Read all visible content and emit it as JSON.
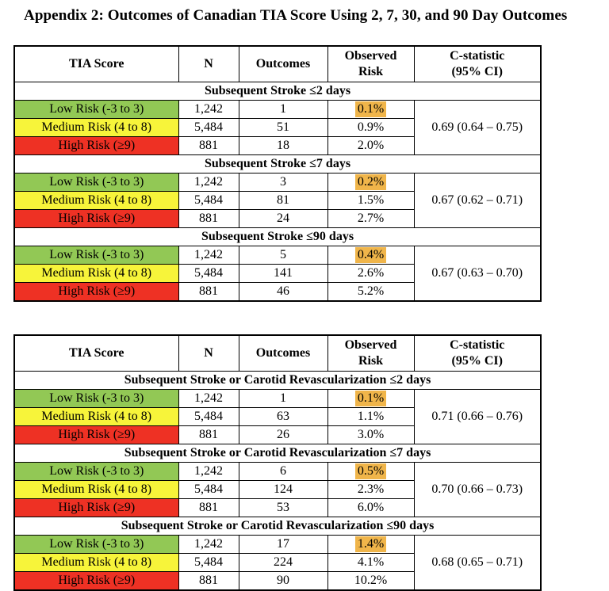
{
  "page": {
    "title": "Appendix 2: Outcomes of Canadian TIA Score Using 2, 7, 30, and 90 Day Outcomes"
  },
  "colors": {
    "low_risk_bg": "#92C855",
    "medium_risk_bg": "#F7F43A",
    "high_risk_bg": "#EE3124",
    "observed_risk_highlight": "#F0B54A"
  },
  "columns": [
    {
      "line1": "TIA Score",
      "line2": ""
    },
    {
      "line1": "N",
      "line2": ""
    },
    {
      "line1": "Outcomes",
      "line2": ""
    },
    {
      "line1": "Observed",
      "line2": "Risk"
    },
    {
      "line1": "C-statistic",
      "line2": "(95% CI)"
    }
  ],
  "tables": [
    {
      "sections": [
        {
          "title": "Subsequent Stroke ≤2 days",
          "c_statistic": "0.69 (0.64 – 0.75)",
          "rows": [
            {
              "label": "Low Risk (-3 to 3)",
              "risk": "low",
              "n": "1,242",
              "outcomes": "1",
              "observed_risk": "0.1%",
              "highlight": true
            },
            {
              "label": "Medium Risk (4 to 8)",
              "risk": "medium",
              "n": "5,484",
              "outcomes": "51",
              "observed_risk": "0.9%",
              "highlight": false
            },
            {
              "label": "High Risk (≥9)",
              "risk": "high",
              "n": "881",
              "outcomes": "18",
              "observed_risk": "2.0%",
              "highlight": false
            }
          ]
        },
        {
          "title": "Subsequent Stroke ≤7 days",
          "c_statistic": "0.67 (0.62 – 0.71)",
          "rows": [
            {
              "label": "Low Risk (-3 to 3)",
              "risk": "low",
              "n": "1,242",
              "outcomes": "3",
              "observed_risk": "0.2%",
              "highlight": true
            },
            {
              "label": "Medium Risk (4 to 8)",
              "risk": "medium",
              "n": "5,484",
              "outcomes": "81",
              "observed_risk": "1.5%",
              "highlight": false
            },
            {
              "label": "High Risk (≥9)",
              "risk": "high",
              "n": "881",
              "outcomes": "24",
              "observed_risk": "2.7%",
              "highlight": false
            }
          ]
        },
        {
          "title": "Subsequent Stroke ≤90 days",
          "c_statistic": "0.67 (0.63 – 0.70)",
          "rows": [
            {
              "label": "Low Risk (-3 to 3)",
              "risk": "low",
              "n": "1,242",
              "outcomes": "5",
              "observed_risk": "0.4%",
              "highlight": true
            },
            {
              "label": "Medium Risk (4 to 8)",
              "risk": "medium",
              "n": "5,484",
              "outcomes": "141",
              "observed_risk": "2.6%",
              "highlight": false
            },
            {
              "label": "High Risk (≥9)",
              "risk": "high",
              "n": "881",
              "outcomes": "46",
              "observed_risk": "5.2%",
              "highlight": false
            }
          ]
        }
      ]
    },
    {
      "sections": [
        {
          "title": "Subsequent Stroke or Carotid Revascularization ≤2 days",
          "c_statistic": "0.71 (0.66 – 0.76)",
          "rows": [
            {
              "label": "Low Risk (-3 to 3)",
              "risk": "low",
              "n": "1,242",
              "outcomes": "1",
              "observed_risk": "0.1%",
              "highlight": true
            },
            {
              "label": "Medium Risk (4 to 8)",
              "risk": "medium",
              "n": "5,484",
              "outcomes": "63",
              "observed_risk": "1.1%",
              "highlight": false
            },
            {
              "label": "High Risk (≥9)",
              "risk": "high",
              "n": "881",
              "outcomes": "26",
              "observed_risk": "3.0%",
              "highlight": false
            }
          ]
        },
        {
          "title": "Subsequent Stroke or Carotid Revascularization ≤7 days",
          "c_statistic": "0.70 (0.66 – 0.73)",
          "rows": [
            {
              "label": "Low Risk (-3 to 3)",
              "risk": "low",
              "n": "1,242",
              "outcomes": "6",
              "observed_risk": "0.5%",
              "highlight": true
            },
            {
              "label": "Medium Risk (4 to 8)",
              "risk": "medium",
              "n": "5,484",
              "outcomes": "124",
              "observed_risk": "2.3%",
              "highlight": false
            },
            {
              "label": "High Risk (≥9)",
              "risk": "high",
              "n": "881",
              "outcomes": "53",
              "observed_risk": "6.0%",
              "highlight": false
            }
          ]
        },
        {
          "title": "Subsequent Stroke or Carotid Revascularization ≤90 days",
          "c_statistic": "0.68 (0.65 – 0.71)",
          "rows": [
            {
              "label": "Low Risk (-3 to 3)",
              "risk": "low",
              "n": "1,242",
              "outcomes": "17",
              "observed_risk": "1.4%",
              "highlight": true
            },
            {
              "label": "Medium Risk (4 to 8)",
              "risk": "medium",
              "n": "5,484",
              "outcomes": "224",
              "observed_risk": "4.1%",
              "highlight": false
            },
            {
              "label": "High Risk (≥9)",
              "risk": "high",
              "n": "881",
              "outcomes": "90",
              "observed_risk": "10.2%",
              "highlight": false
            }
          ]
        }
      ]
    }
  ]
}
